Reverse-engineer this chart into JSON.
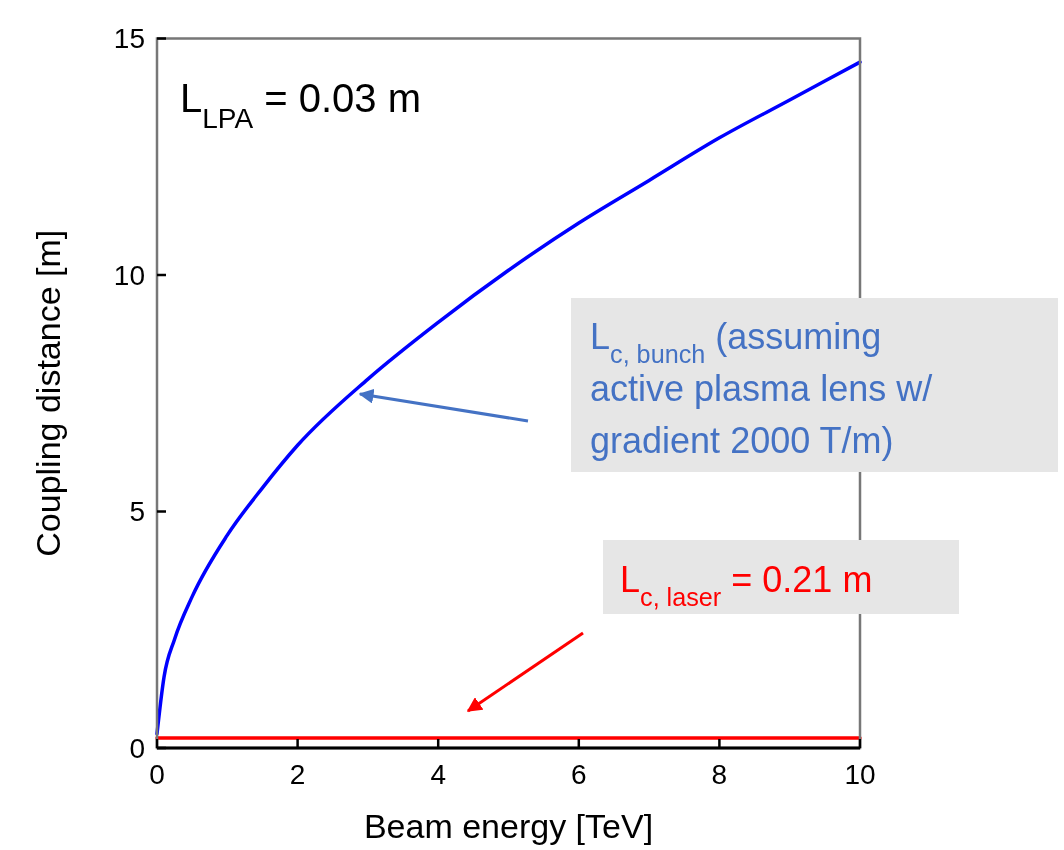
{
  "chart_data": {
    "type": "line",
    "xlabel": "Beam energy [TeV]",
    "ylabel": "Coupling distance [m]",
    "xlim": [
      0,
      10
    ],
    "xticks": [
      0,
      2,
      4,
      6,
      8,
      10
    ],
    "ylim": [
      0,
      15
    ],
    "yticks": [
      0,
      5,
      10,
      15
    ],
    "grid": false,
    "marker": "none",
    "line_style": "solid",
    "series": [
      {
        "color": "#0000ff",
        "x": [
          0,
          0.1,
          0.25,
          0.5,
          1,
          1.5,
          2,
          3,
          4,
          5,
          6,
          7,
          8,
          9,
          10
        ],
        "values": [
          0.3,
          1.5,
          2.3,
          3.2,
          4.5,
          5.5,
          6.4,
          7.8,
          9.0,
          10.1,
          11.1,
          12.0,
          12.9,
          13.7,
          14.5
        ]
      },
      {
        "color": "#ff0000",
        "x": [
          0,
          10
        ],
        "values": [
          0.21,
          0.21
        ]
      }
    ],
    "annotations": [
      "L$_{LPA}$ = 0.03 m",
      "L$_{c, bunch}$ (assuming active plasma lens w/ gradient 2000 T/m)",
      "L$_{c, laser}$ = 0.21 m"
    ]
  }
}
